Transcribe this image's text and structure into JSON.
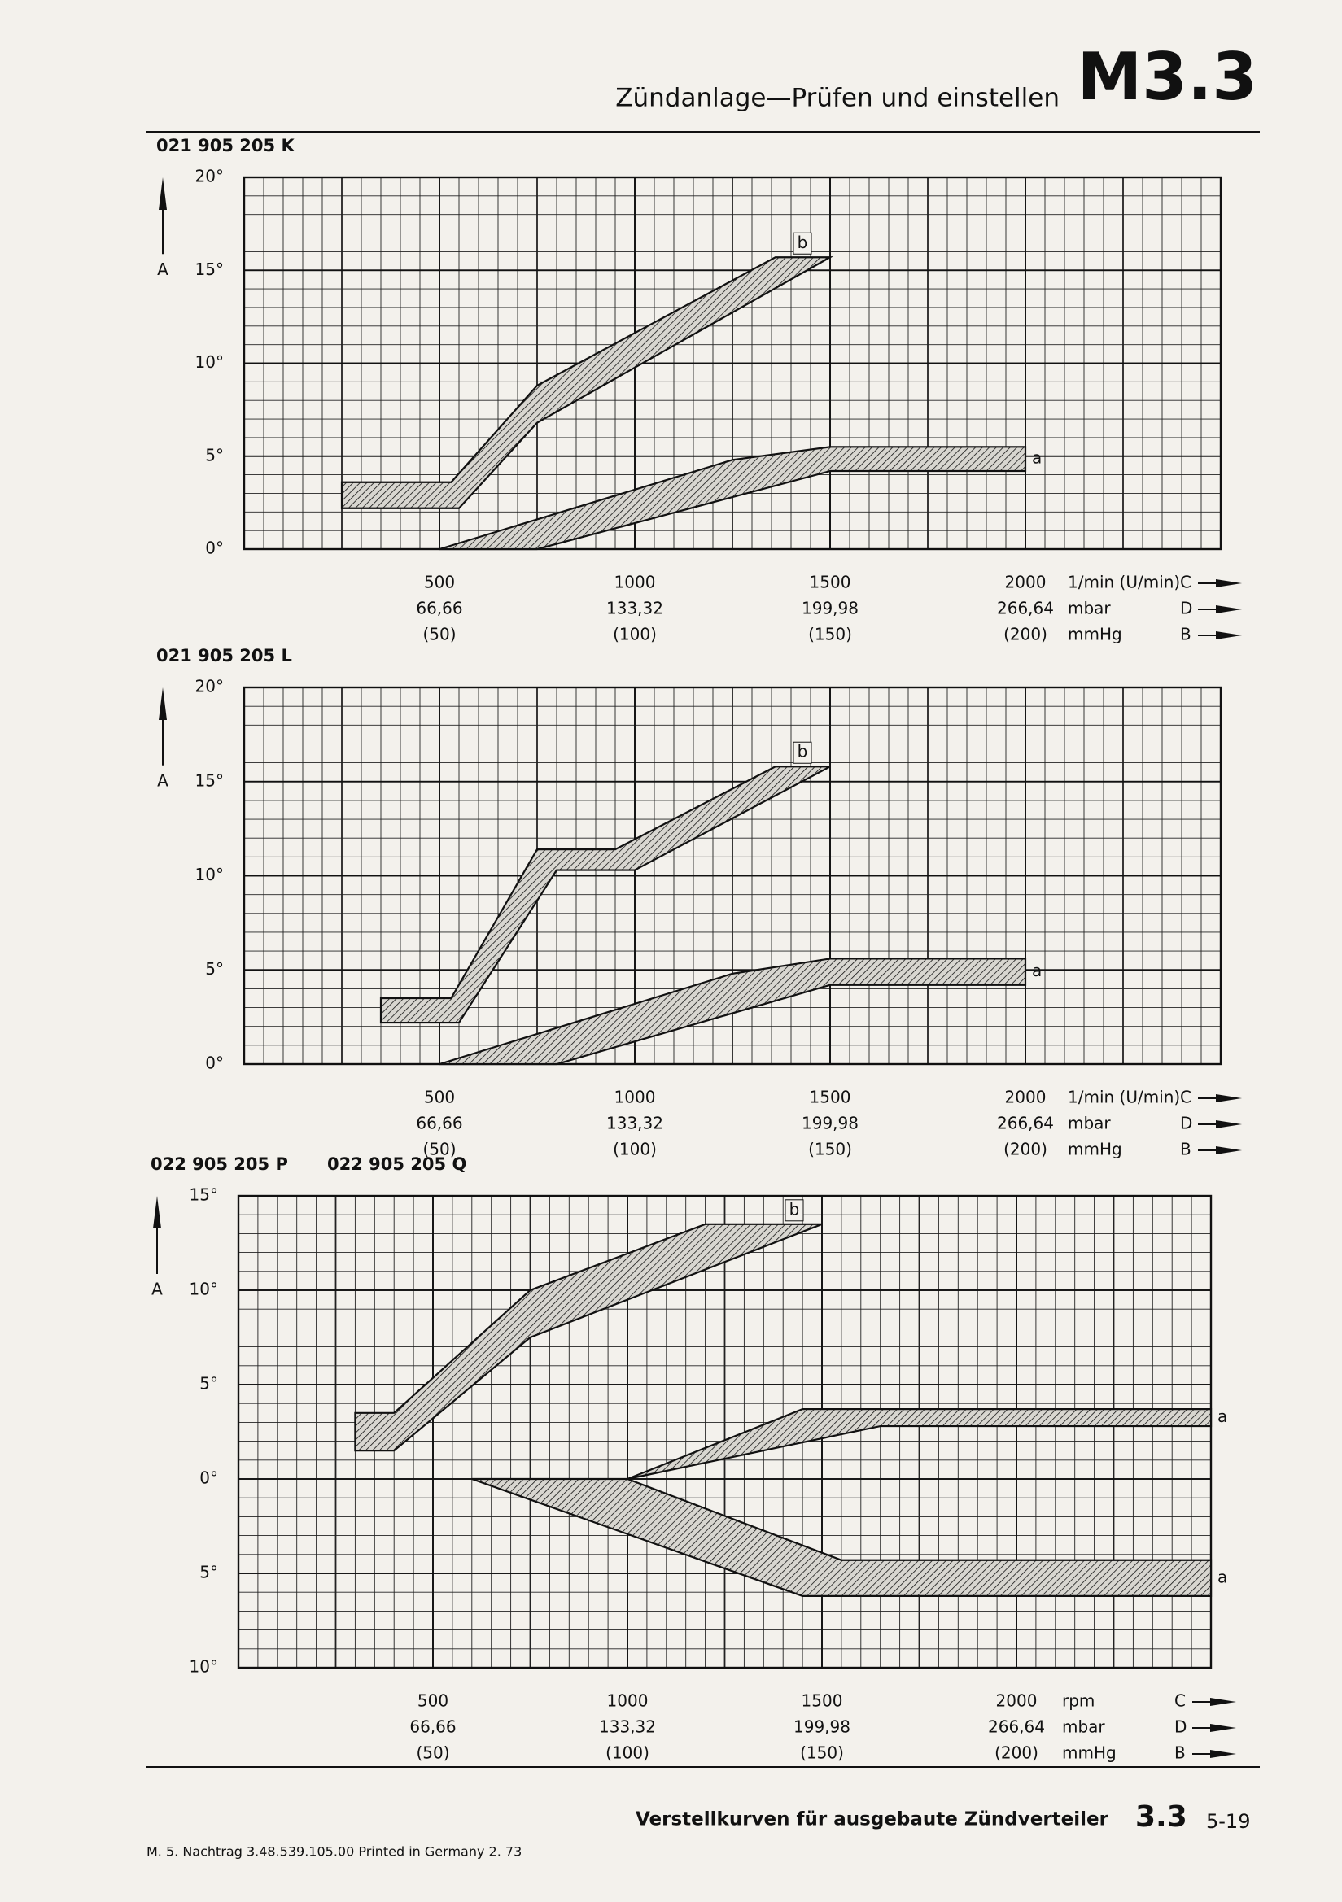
{
  "header": {
    "title": "Zündanlage—Prüfen und einstellen",
    "code": "M3.3"
  },
  "footer": {
    "caption": "Verstellkurven für ausgebaute Zündverteiler",
    "section": "3.3",
    "page": "5-19",
    "imprint": "M.  5. Nachtrag  3.48.539.105.00  Printed in Germany  2. 73"
  },
  "chart_data": [
    {
      "type": "band",
      "ids": [
        "021 905 205 K"
      ],
      "y_label": "A",
      "xlim": [
        0,
        2500
      ],
      "ylim": [
        0,
        20
      ],
      "yticks": [
        {
          "value": 0,
          "label": "0°"
        },
        {
          "value": 5,
          "label": "5°"
        },
        {
          "value": 10,
          "label": "10°"
        },
        {
          "value": 15,
          "label": "15°"
        },
        {
          "value": 20,
          "label": "20°"
        }
      ],
      "xticks": [
        500,
        1000,
        1500,
        2000
      ],
      "x_unit": "1/min (U/min)",
      "x_letter": "C",
      "x_secondary": [
        {
          "unit": "mbar",
          "letter": "D",
          "labels": [
            "66,66",
            "133,32",
            "199,98",
            "266,64"
          ]
        },
        {
          "unit": "mmHg",
          "letter": "B",
          "labels": [
            "(50)",
            "(100)",
            "(150)",
            "(200)"
          ]
        }
      ],
      "bands": [
        {
          "name": "b",
          "upper": {
            "x": [
              250,
              530,
              750,
              1360,
              1500
            ],
            "values": [
              3.6,
              3.6,
              8.8,
              15.7,
              15.7
            ]
          },
          "lower": {
            "x": [
              250,
              550,
              750,
              1500
            ],
            "values": [
              2.2,
              2.2,
              6.8,
              15.7
            ]
          }
        },
        {
          "name": "a",
          "upper": {
            "x": [
              500,
              1250,
              1500,
              2000
            ],
            "values": [
              0,
              4.8,
              5.5,
              5.5
            ]
          },
          "lower": {
            "x": [
              750,
              1500,
              2000
            ],
            "values": [
              0,
              4.2,
              4.2
            ]
          }
        }
      ]
    },
    {
      "type": "band",
      "ids": [
        "021 905 205 L"
      ],
      "y_label": "A",
      "xlim": [
        0,
        2500
      ],
      "ylim": [
        0,
        20
      ],
      "yticks": [
        {
          "value": 0,
          "label": "0°"
        },
        {
          "value": 5,
          "label": "5°"
        },
        {
          "value": 10,
          "label": "10°"
        },
        {
          "value": 15,
          "label": "15°"
        },
        {
          "value": 20,
          "label": "20°"
        }
      ],
      "xticks": [
        500,
        1000,
        1500,
        2000
      ],
      "x_unit": "1/min (U/min)",
      "x_letter": "C",
      "x_secondary": [
        {
          "unit": "mbar",
          "letter": "D",
          "labels": [
            "66,66",
            "133,32",
            "199,98",
            "266,64"
          ]
        },
        {
          "unit": "mmHg",
          "letter": "B",
          "labels": [
            "(50)",
            "(100)",
            "(150)",
            "(200)"
          ]
        }
      ],
      "bands": [
        {
          "name": "b",
          "upper": {
            "x": [
              350,
              530,
              750,
              950,
              1360,
              1500
            ],
            "values": [
              3.5,
              3.5,
              11.4,
              11.4,
              15.8,
              15.8
            ]
          },
          "lower": {
            "x": [
              350,
              550,
              800,
              1000,
              1500
            ],
            "values": [
              2.2,
              2.2,
              10.3,
              10.3,
              15.8
            ]
          }
        },
        {
          "name": "a",
          "upper": {
            "x": [
              500,
              1250,
              1500,
              2000
            ],
            "values": [
              0,
              4.8,
              5.6,
              5.6
            ]
          },
          "lower": {
            "x": [
              800,
              1500,
              2000
            ],
            "values": [
              0,
              4.2,
              4.2
            ]
          }
        }
      ]
    },
    {
      "type": "band",
      "ids": [
        "022 905 205 P",
        "022 905 205 Q"
      ],
      "y_label": "A",
      "xlim": [
        0,
        2500
      ],
      "ylim": [
        -10,
        15
      ],
      "yticks": [
        {
          "value": -10,
          "label": "10°"
        },
        {
          "value": -5,
          "label": "5°"
        },
        {
          "value": 0,
          "label": "0°"
        },
        {
          "value": 5,
          "label": "5°"
        },
        {
          "value": 10,
          "label": "10°"
        },
        {
          "value": 15,
          "label": "15°"
        }
      ],
      "xticks": [
        500,
        1000,
        1500,
        2000
      ],
      "x_unit": "rpm",
      "x_letter": "C",
      "x_secondary": [
        {
          "unit": "mbar",
          "letter": "D",
          "labels": [
            "66,66",
            "133,32",
            "199,98",
            "266,64"
          ]
        },
        {
          "unit": "mmHg",
          "letter": "B",
          "labels": [
            "(50)",
            "(100)",
            "(150)",
            "(200)"
          ]
        }
      ],
      "bands": [
        {
          "name": "b",
          "upper": {
            "x": [
              300,
              400,
              750,
              1200,
              1500
            ],
            "values": [
              3.5,
              3.5,
              10,
              13.5,
              13.5
            ]
          },
          "lower": {
            "x": [
              300,
              400,
              750,
              1000,
              1500
            ],
            "values": [
              1.5,
              1.5,
              7.5,
              9.5,
              13.5
            ]
          }
        },
        {
          "name": "a",
          "upper": {
            "x": [
              1000,
              1450,
              2500
            ],
            "values": [
              0,
              3.7,
              3.7
            ]
          },
          "lower": {
            "x": [
              1000,
              1650,
              2500
            ],
            "values": [
              0,
              2.8,
              2.8
            ]
          }
        },
        {
          "name": "a",
          "upper": {
            "x": [
              600,
              1000,
              1550,
              2500
            ],
            "values": [
              0,
              0,
              -4.3,
              -4.3
            ]
          },
          "lower": {
            "x": [
              600,
              1450,
              2500
            ],
            "values": [
              0,
              -6.2,
              -6.2
            ]
          }
        }
      ]
    }
  ]
}
